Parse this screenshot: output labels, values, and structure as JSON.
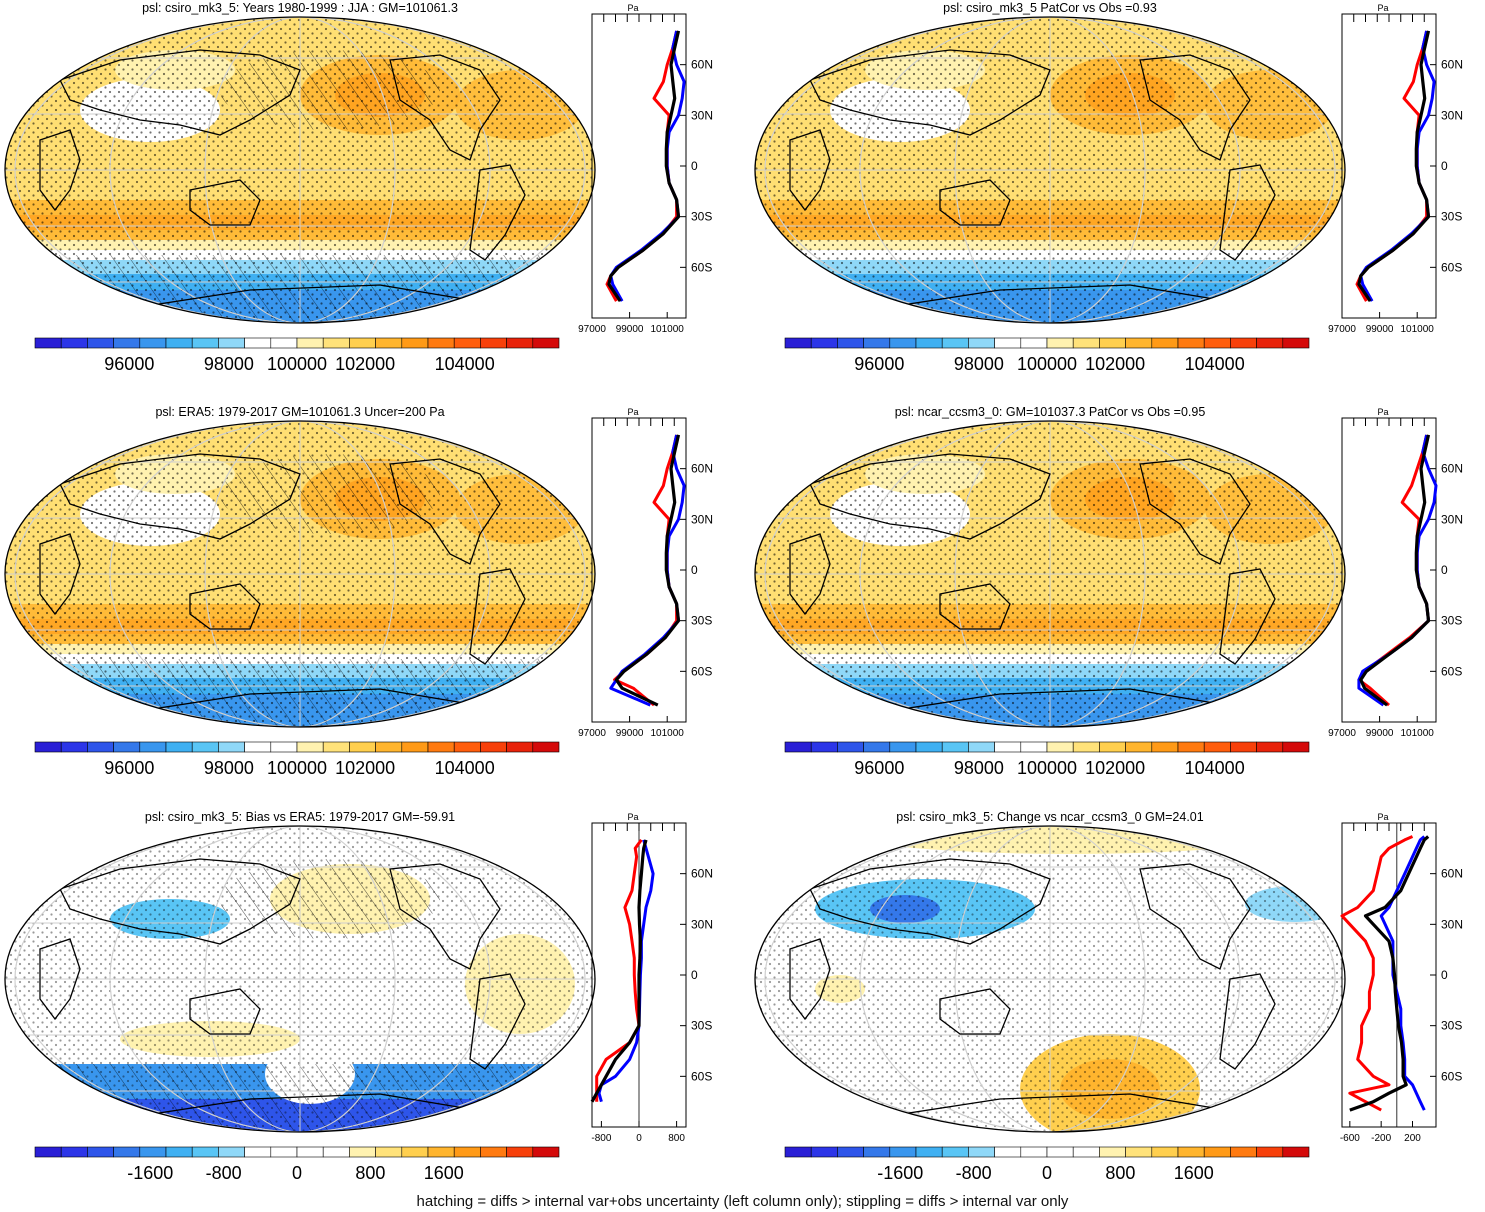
{
  "footer": "hatching = diffs > internal var+obs uncertainty (left column only); stippling = diffs > internal var only",
  "colors": {
    "abs_scale": [
      "#2a1fd6",
      "#2c35e8",
      "#2e55ea",
      "#3478ea",
      "#3996ee",
      "#3fb0f2",
      "#59c5f5",
      "#8fd8f8",
      "#ffffff",
      "#ffffff",
      "#fff2b0",
      "#ffe27a",
      "#ffcf4e",
      "#ffb52e",
      "#ff9a17",
      "#ff7a10",
      "#ff5d0c",
      "#f7400a",
      "#e8220a",
      "#d40a0a"
    ],
    "diff_scale": [
      "#2a1fd6",
      "#2c35e8",
      "#2e55ea",
      "#3478ea",
      "#3996ee",
      "#3fb0f2",
      "#59c5f5",
      "#8fd8f8",
      "#ffffff",
      "#ffffff",
      "#ffffff",
      "#ffffff",
      "#fff2b0",
      "#ffe27a",
      "#ffcf4e",
      "#ffb52e",
      "#ff9a17",
      "#ff7a10",
      "#f7400a",
      "#d40a0a"
    ],
    "model_line": "#ff0000",
    "alt_line": "#0000ff",
    "obs_line": "#000000"
  },
  "chart_data": [
    {
      "type": "heatmap",
      "title": "psl: csiro_mk3_5: Years 1980-1999 : JJA : GM=101061.3",
      "colorbar_ticks": [
        "96000",
        "98000",
        "100000",
        "102000",
        "104000"
      ],
      "field": "absolute",
      "zonal_mean": {
        "unit_label": "Pa",
        "lat_ticks": [
          "60N",
          "30N",
          "0",
          "30S",
          "60S"
        ],
        "x_ticks": [
          "97000",
          "99000",
          "101000"
        ],
        "xlim": [
          97000,
          102000
        ],
        "lat": [
          80,
          70,
          60,
          50,
          40,
          30,
          20,
          10,
          0,
          -10,
          -20,
          -30,
          -40,
          -50,
          -60,
          -65,
          -70,
          -80
        ],
        "series": [
          {
            "name": "model",
            "values": [
              101500,
              101300,
              101000,
              100800,
              100300,
              101100,
              101000,
              101000,
              101000,
              101100,
              101500,
              101500,
              100800,
              99700,
              98400,
              98000,
              97800,
              98300
            ]
          },
          {
            "name": "alt",
            "values": [
              101500,
              101300,
              101500,
              101900,
              101800,
              101600,
              101100,
              101000,
              101000,
              101100,
              101500,
              101600,
              100700,
              99600,
              98300,
              98000,
              98100,
              98600
            ]
          },
          {
            "name": "obs",
            "values": [
              101600,
              101400,
              101200,
              101300,
              101400,
              101200,
              101000,
              100950,
              100950,
              101100,
              101500,
              101600,
              100800,
              99700,
              98400,
              98000,
              97900,
              98500
            ]
          }
        ]
      }
    },
    {
      "type": "heatmap",
      "title": "psl: csiro_mk3_5 PatCor vs Obs =0.93",
      "colorbar_ticks": [
        "96000",
        "98000",
        "100000",
        "102000",
        "104000"
      ],
      "field": "absolute",
      "zonal_mean": {
        "unit_label": "Pa",
        "lat_ticks": [
          "60N",
          "30N",
          "0",
          "30S",
          "60S"
        ],
        "x_ticks": [
          "97000",
          "99000",
          "101000"
        ],
        "xlim": [
          97000,
          102000
        ],
        "lat": [
          80,
          70,
          60,
          50,
          40,
          30,
          20,
          10,
          0,
          -10,
          -20,
          -30,
          -40,
          -50,
          -60,
          -65,
          -70,
          -80
        ],
        "series": [
          {
            "name": "model",
            "values": [
              101500,
              101300,
              101000,
              100800,
              100300,
              101100,
              101000,
              101000,
              101000,
              101100,
              101500,
              101500,
              100800,
              99700,
              98400,
              98000,
              97800,
              98300
            ]
          },
          {
            "name": "alt",
            "values": [
              101500,
              101300,
              101500,
              101900,
              101800,
              101600,
              101100,
              101000,
              101000,
              101100,
              101500,
              101600,
              100700,
              99600,
              98300,
              98000,
              98100,
              98600
            ]
          },
          {
            "name": "obs",
            "values": [
              101600,
              101400,
              101200,
              101300,
              101400,
              101200,
              101000,
              100950,
              100950,
              101100,
              101500,
              101600,
              100800,
              99700,
              98400,
              98000,
              97900,
              98500
            ]
          }
        ]
      }
    },
    {
      "type": "heatmap",
      "title": "psl: ERA5: 1979-2017 GM=101061.3 Uncer=200 Pa",
      "colorbar_ticks": [
        "96000",
        "98000",
        "100000",
        "102000",
        "104000"
      ],
      "field": "absolute",
      "zonal_mean": {
        "unit_label": "Pa",
        "lat_ticks": [
          "60N",
          "30N",
          "0",
          "30S",
          "60S"
        ],
        "x_ticks": [
          "97000",
          "99000",
          "101000"
        ],
        "xlim": [
          97000,
          102000
        ],
        "lat": [
          80,
          70,
          60,
          50,
          40,
          30,
          20,
          10,
          0,
          -10,
          -20,
          -30,
          -40,
          -50,
          -60,
          -65,
          -70,
          -80
        ],
        "series": [
          {
            "name": "model",
            "values": [
              101500,
              101300,
              101000,
              100800,
              100300,
              101100,
              101000,
              101000,
              101000,
              101100,
              101500,
              101500,
              100900,
              99900,
              98700,
              98200,
              99200,
              100300
            ]
          },
          {
            "name": "alt",
            "values": [
              101500,
              101300,
              101500,
              101900,
              101800,
              101600,
              101100,
              101000,
              101000,
              101100,
              101500,
              101600,
              100800,
              99800,
              98600,
              98300,
              98000,
              100100
            ]
          },
          {
            "name": "obs",
            "values": [
              101600,
              101400,
              101200,
              101300,
              101400,
              101200,
              101000,
              100950,
              100950,
              101100,
              101500,
              101600,
              100900,
              99900,
              98700,
              98300,
              98600,
              100500
            ]
          }
        ]
      }
    },
    {
      "type": "heatmap",
      "title": "psl: ncar_ccsm3_0: GM=101037.3 PatCor vs Obs =0.95",
      "colorbar_ticks": [
        "96000",
        "98000",
        "100000",
        "102000",
        "104000"
      ],
      "field": "absolute",
      "zonal_mean": {
        "unit_label": "Pa",
        "lat_ticks": [
          "60N",
          "30N",
          "0",
          "30S",
          "60S"
        ],
        "x_ticks": [
          "97000",
          "99000",
          "101000"
        ],
        "xlim": [
          97000,
          102000
        ],
        "lat": [
          80,
          70,
          60,
          50,
          40,
          30,
          20,
          10,
          0,
          -10,
          -20,
          -30,
          -40,
          -50,
          -60,
          -65,
          -70,
          -80
        ],
        "series": [
          {
            "name": "model",
            "values": [
              101500,
              101300,
              101000,
              100700,
              100200,
              101100,
              101000,
              101000,
              101000,
              101100,
              101500,
              101600,
              100600,
              99400,
              98200,
              97900,
              98500,
              99500
            ]
          },
          {
            "name": "alt",
            "values": [
              101500,
              101300,
              101600,
              102000,
              101900,
              101600,
              101100,
              101000,
              101000,
              101100,
              101500,
              101600,
              100700,
              99500,
              98100,
              97900,
              97900,
              99200
            ]
          },
          {
            "name": "obs",
            "values": [
              101600,
              101400,
              101200,
              101300,
              101400,
              101200,
              101000,
              100950,
              100950,
              101100,
              101500,
              101600,
              100700,
              99500,
              98300,
              98000,
              98200,
              99400
            ]
          }
        ]
      }
    },
    {
      "type": "heatmap",
      "title": "psl: csiro_mk3_5: Bias vs ERA5: 1979-2017 GM=-59.91",
      "colorbar_ticks": [
        "-1600",
        "-800",
        "0",
        "800",
        "1600"
      ],
      "field": "diff",
      "zonal_mean": {
        "unit_label": "Pa",
        "lat_ticks": [
          "60N",
          "30N",
          "0",
          "30S",
          "60S"
        ],
        "x_ticks": [
          "-800",
          "0",
          "800"
        ],
        "xlim": [
          -1000,
          1000
        ],
        "zero_line": true,
        "lat": [
          80,
          75,
          70,
          60,
          50,
          40,
          30,
          20,
          10,
          0,
          -10,
          -20,
          -30,
          -40,
          -50,
          -60,
          -65,
          -70,
          -75
        ],
        "series": [
          {
            "name": "model",
            "values": [
              50,
              -80,
              -50,
              -100,
              -150,
              -300,
              -200,
              -150,
              -100,
              -100,
              -80,
              -50,
              0,
              -200,
              -700,
              -900,
              -900,
              -900,
              -900
            ]
          },
          {
            "name": "alt",
            "values": [
              100,
              150,
              200,
              300,
              250,
              150,
              100,
              50,
              50,
              30,
              20,
              10,
              0,
              -50,
              -200,
              -500,
              -800,
              -850,
              -800
            ]
          },
          {
            "name": "obs",
            "values": [
              150,
              100,
              80,
              50,
              20,
              0,
              10,
              30,
              20,
              0,
              0,
              0,
              0,
              -200,
              -500,
              -700,
              -800,
              -900,
              -1000
            ]
          }
        ]
      }
    },
    {
      "type": "heatmap",
      "title": "psl: csiro_mk3_5: Change vs ncar_ccsm3_0 GM=24.01",
      "colorbar_ticks": [
        "-1600",
        "-800",
        "0",
        "800",
        "1600"
      ],
      "field": "diff",
      "zonal_mean": {
        "unit_label": "Pa",
        "lat_ticks": [
          "60N",
          "30N",
          "0",
          "30S",
          "60S"
        ],
        "x_ticks": [
          "-600",
          "-200",
          "200"
        ],
        "xlim": [
          -700,
          500
        ],
        "zero_line": true,
        "lat": [
          82,
          80,
          75,
          70,
          60,
          50,
          40,
          35,
          30,
          20,
          10,
          0,
          -10,
          -20,
          -30,
          -40,
          -50,
          -60,
          -65,
          -70,
          -75,
          -80
        ],
        "series": [
          {
            "name": "model",
            "values": [
              200,
              100,
              -100,
              -200,
              -250,
              -300,
              -500,
              -700,
              -600,
              -400,
              -300,
              -300,
              -350,
              -350,
              -450,
              -450,
              -500,
              -300,
              -100,
              -600,
              -400,
              -200
            ]
          },
          {
            "name": "alt",
            "values": [
              350,
              300,
              250,
              200,
              100,
              0,
              -100,
              -200,
              -150,
              -50,
              -50,
              -50,
              0,
              50,
              50,
              80,
              100,
              100,
              200,
              250,
              300,
              350
            ]
          },
          {
            "name": "obs",
            "values": [
              400,
              350,
              300,
              250,
              150,
              50,
              -150,
              -400,
              -300,
              -100,
              -50,
              -30,
              -20,
              0,
              20,
              60,
              80,
              80,
              120,
              -100,
              -300,
              -600
            ]
          }
        ]
      }
    }
  ]
}
